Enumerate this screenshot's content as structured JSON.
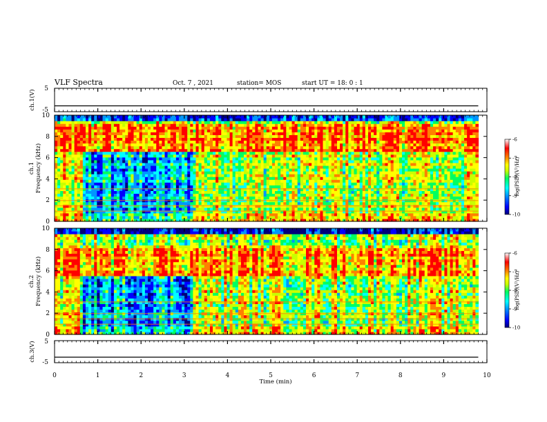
{
  "header": {
    "title": "VLF Spectra",
    "date": "Oct. 7 , 2021",
    "station": "station= MOS",
    "start": "start UT = 18: 0 : 1"
  },
  "chart_data": [
    {
      "type": "line",
      "panel": "ch1-waveform",
      "ylabel": "ch.1(V)",
      "ylim": [
        -5,
        5
      ],
      "yticks": [
        "5",
        "-5"
      ],
      "xlim": [
        0,
        10
      ],
      "level": -2.5
    },
    {
      "type": "heatmap",
      "panel": "ch1-spectrogram",
      "ylabel": "ch.1\nFrequency (kHz)",
      "ylabel_line1": "ch.1",
      "ylabel_line2": "Frequency (kHz)",
      "ylim": [
        0,
        10
      ],
      "yticks": [
        "0",
        "2",
        "4",
        "6",
        "8",
        "10"
      ],
      "xlim": [
        0,
        10
      ],
      "data_end_min": 9.8,
      "colorbar": {
        "label": "log(PSD)(V²/Hz)",
        "range": [
          -10,
          -6
        ],
        "ticks": [
          "-6",
          "-7",
          "-8",
          "-9",
          "-10"
        ]
      },
      "intense_band_khz": [
        6.5,
        9.0
      ],
      "quiet_interval_min": [
        0.65,
        3.2
      ],
      "dark_top_khz": [
        9.3,
        10.0
      ]
    },
    {
      "type": "heatmap",
      "panel": "ch2-spectrogram",
      "ylabel": "ch.2\nFrequency (kHz)",
      "ylabel_line1": "ch.2",
      "ylabel_line2": "Frequency (kHz)",
      "ylim": [
        0,
        10
      ],
      "yticks": [
        "0",
        "2",
        "4",
        "6",
        "8",
        "10"
      ],
      "xlim": [
        0,
        10
      ],
      "data_end_min": 9.8,
      "colorbar": {
        "label": "log(PSD)(V²/Hz)",
        "range": [
          -10,
          -6
        ],
        "ticks": [
          "-6",
          "-7",
          "-8",
          "-9",
          "-10"
        ]
      },
      "intense_band_khz": [
        5.5,
        8.0
      ],
      "quiet_interval_min": [
        0.65,
        3.2
      ],
      "dark_top_khz": [
        9.3,
        10.0
      ]
    },
    {
      "type": "line",
      "panel": "ch3-waveform",
      "ylabel": "ch.3(V)",
      "ylim": [
        -5,
        5
      ],
      "yticks": [
        "5",
        "-5"
      ],
      "xlim": [
        0,
        10
      ],
      "level": -2.5
    }
  ],
  "xaxis": {
    "label": "Time (min)",
    "ticks": [
      "0",
      "1",
      "2",
      "3",
      "4",
      "5",
      "6",
      "7",
      "8",
      "9",
      "10"
    ]
  },
  "colors": {
    "colormap": [
      "#00007a",
      "#0000ff",
      "#0096ff",
      "#00ffff",
      "#00ff60",
      "#c8ff00",
      "#ffff00",
      "#ff8000",
      "#ff0000",
      "#ffffff"
    ]
  }
}
